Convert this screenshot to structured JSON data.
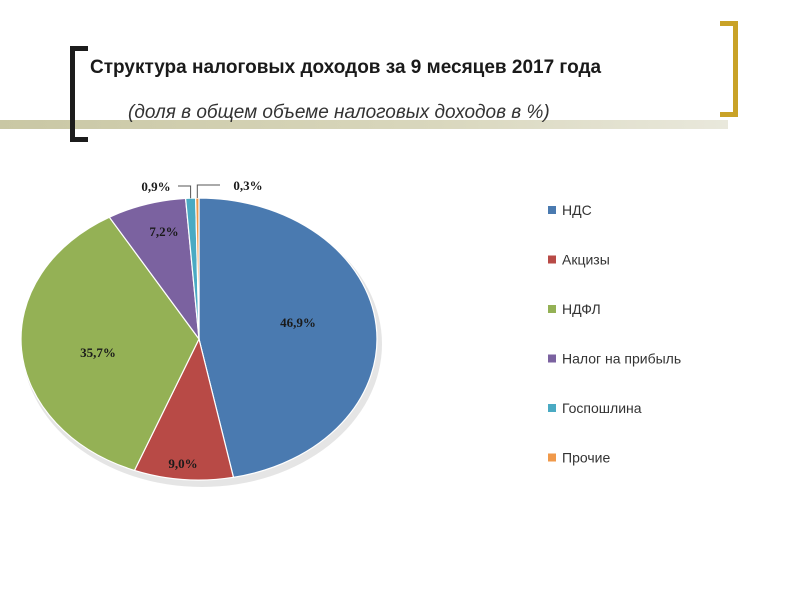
{
  "slide": {
    "title": "Структура налоговых доходов за 9 месяцев 2017 года",
    "subtitle": "(доля в общем объеме налоговых доходов в %)"
  },
  "colors": {
    "left_bracket": "#1c1c1c",
    "right_bracket": "#c9a227",
    "title_rule": "#c9c7a4"
  },
  "chart_data": {
    "type": "pie",
    "title": "",
    "legend_position": "right",
    "categories": [
      "НДС",
      "Акцизы",
      "НДФЛ",
      "Налог на прибыль",
      "Госпошлина",
      "Прочие"
    ],
    "values": [
      46.9,
      9.0,
      35.7,
      7.2,
      0.9,
      0.3
    ],
    "labels": [
      "46,9%",
      "9,0%",
      "35,7%",
      "7,2%",
      "0,9%",
      "0,3%"
    ],
    "colors": [
      "#4a7ab0",
      "#b84a46",
      "#94b155",
      "#7b62a0",
      "#4aaac3",
      "#f0994a"
    ],
    "start_angle_deg": 0,
    "direction": "clockwise"
  }
}
